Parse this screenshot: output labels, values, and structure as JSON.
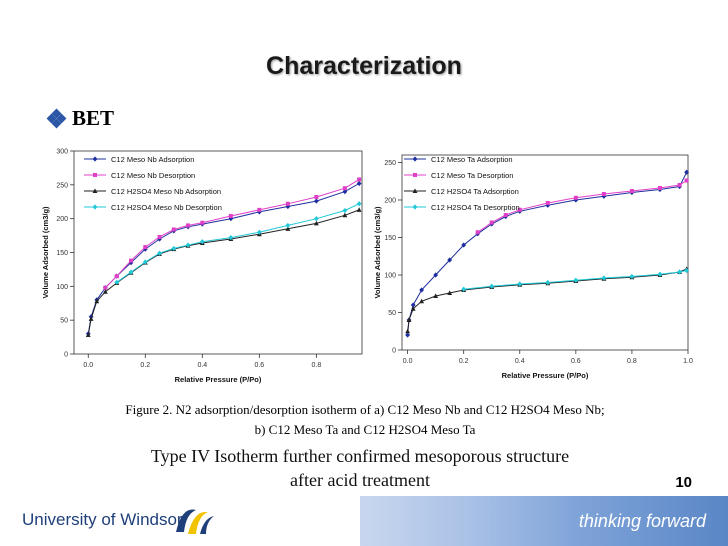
{
  "slide": {
    "title": "Characterization",
    "bullet_label": "BET",
    "caption_line1": "Figure 2. N2 adsorption/desorption isotherm of a) C12 Meso Nb and C12 H2SO4 Meso Nb;",
    "caption_line2": "b) C12 Meso Ta and C12 H2SO4 Meso Ta",
    "conclusion_line1": "Type IV Isotherm further confirmed mesoporous structure",
    "conclusion_line2": "after acid treatment",
    "page_number": "10",
    "footer_university": "University of Windsor",
    "footer_tagline": "thinking forward"
  },
  "chart_data": [
    {
      "type": "line",
      "xlabel": "Relative Pressure (P/Po)",
      "ylabel": "Volume Adsorbed (cm3/g)",
      "xlim": [
        -0.05,
        0.96
      ],
      "ylim": [
        0,
        300
      ],
      "xticks": [
        "0.0",
        "0.2",
        "0.4",
        "0.6",
        "0.8"
      ],
      "yticks": [
        "0",
        "50",
        "100",
        "150",
        "200",
        "250",
        "300"
      ],
      "legend_position": "top-left",
      "series": [
        {
          "name": "C12 Meso Nb Adsorption",
          "color": "#1f2f9f",
          "marker": "diamond",
          "x": [
            0.0,
            0.01,
            0.03,
            0.06,
            0.1,
            0.15,
            0.2,
            0.25,
            0.3,
            0.35,
            0.4,
            0.5,
            0.6,
            0.7,
            0.8,
            0.9,
            0.95
          ],
          "y": [
            30,
            55,
            80,
            98,
            115,
            135,
            155,
            170,
            182,
            188,
            192,
            200,
            210,
            218,
            226,
            240,
            252
          ]
        },
        {
          "name": "C12 Meso Nb Desorption",
          "color": "#e040c8",
          "marker": "square",
          "x": [
            0.06,
            0.1,
            0.15,
            0.2,
            0.25,
            0.3,
            0.35,
            0.4,
            0.5,
            0.6,
            0.7,
            0.8,
            0.9,
            0.95
          ],
          "y": [
            98,
            115,
            138,
            158,
            173,
            184,
            190,
            194,
            204,
            213,
            222,
            232,
            245,
            258
          ]
        },
        {
          "name": "C12 H2SO4 Meso Nb Adsorption",
          "color": "#222222",
          "marker": "triangle",
          "x": [
            0.0,
            0.01,
            0.03,
            0.06,
            0.1,
            0.15,
            0.2,
            0.25,
            0.3,
            0.35,
            0.4,
            0.5,
            0.6,
            0.7,
            0.8,
            0.9,
            0.95
          ],
          "y": [
            28,
            52,
            78,
            92,
            105,
            120,
            135,
            148,
            155,
            160,
            164,
            170,
            177,
            185,
            193,
            205,
            213
          ]
        },
        {
          "name": "C12 H2SO4 Meso Nb Desorption",
          "color": "#20c8d8",
          "marker": "diamond",
          "x": [
            0.1,
            0.15,
            0.2,
            0.25,
            0.3,
            0.35,
            0.4,
            0.5,
            0.6,
            0.7,
            0.8,
            0.9,
            0.95
          ],
          "y": [
            106,
            121,
            136,
            149,
            156,
            161,
            166,
            172,
            180,
            190,
            200,
            212,
            222
          ]
        }
      ]
    },
    {
      "type": "line",
      "xlabel": "Relative Pressure (P/Po)",
      "ylabel": "Volume Adsorbed (cm3/g)",
      "xlim": [
        -0.02,
        1.0
      ],
      "ylim": [
        0,
        260
      ],
      "xticks": [
        "0.0",
        "0.2",
        "0.4",
        "0.6",
        "0.8",
        "1.0"
      ],
      "yticks": [
        "0",
        "50",
        "100",
        "150",
        "200",
        "250"
      ],
      "legend_position": "top-left",
      "series": [
        {
          "name": "C12 Meso Ta Adsorption",
          "color": "#1f2f9f",
          "marker": "diamond",
          "x": [
            0.0,
            0.005,
            0.02,
            0.05,
            0.1,
            0.15,
            0.2,
            0.25,
            0.3,
            0.35,
            0.4,
            0.5,
            0.6,
            0.7,
            0.8,
            0.9,
            0.97,
            0.995
          ],
          "y": [
            20,
            40,
            60,
            80,
            100,
            120,
            140,
            155,
            168,
            178,
            185,
            193,
            200,
            205,
            210,
            214,
            218,
            237
          ]
        },
        {
          "name": "C12 Meso Ta Desorption",
          "color": "#e040c8",
          "marker": "square",
          "x": [
            0.25,
            0.3,
            0.35,
            0.4,
            0.5,
            0.6,
            0.7,
            0.8,
            0.9,
            0.97,
            0.995
          ],
          "y": [
            157,
            170,
            180,
            187,
            196,
            203,
            208,
            212,
            216,
            220,
            226
          ]
        },
        {
          "name": "C12 H2SO4 Ta Adsorption",
          "color": "#222222",
          "marker": "triangle",
          "x": [
            0.0,
            0.005,
            0.02,
            0.05,
            0.1,
            0.15,
            0.2,
            0.3,
            0.4,
            0.5,
            0.6,
            0.7,
            0.8,
            0.9,
            0.97,
            0.995
          ],
          "y": [
            25,
            40,
            55,
            65,
            72,
            76,
            80,
            84,
            87,
            89,
            92,
            95,
            97,
            100,
            104,
            108
          ]
        },
        {
          "name": "C12 H2SO4 Ta Desorption",
          "color": "#20c8d8",
          "marker": "diamond",
          "x": [
            0.2,
            0.3,
            0.4,
            0.5,
            0.6,
            0.7,
            0.8,
            0.9,
            0.97,
            0.995
          ],
          "y": [
            81,
            85,
            88,
            90,
            93,
            96,
            98,
            101,
            104,
            106
          ]
        }
      ]
    }
  ]
}
